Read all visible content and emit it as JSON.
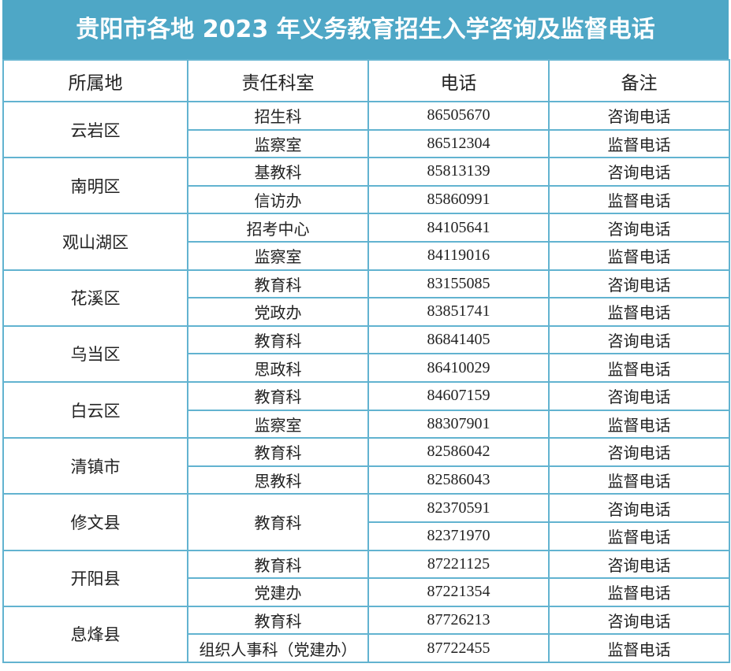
{
  "title": "贵阳市各地 2023 年义务教育招生入学咨询及监督电话",
  "table": {
    "columns": [
      "所属地",
      "责任科室",
      "电话",
      "备注"
    ],
    "groups": [
      {
        "district": "云岩区",
        "rows": [
          {
            "dept": "招生科",
            "phone": "86505670",
            "note": "咨询电话"
          },
          {
            "dept": "监察室",
            "phone": "86512304",
            "note": "监督电话"
          }
        ]
      },
      {
        "district": "南明区",
        "rows": [
          {
            "dept": "基教科",
            "phone": "85813139",
            "note": "咨询电话"
          },
          {
            "dept": "信访办",
            "phone": "85860991",
            "note": "监督电话"
          }
        ]
      },
      {
        "district": "观山湖区",
        "rows": [
          {
            "dept": "招考中心",
            "phone": "84105641",
            "note": "咨询电话"
          },
          {
            "dept": "监察室",
            "phone": "84119016",
            "note": "监督电话"
          }
        ]
      },
      {
        "district": "花溪区",
        "rows": [
          {
            "dept": "教育科",
            "phone": "83155085",
            "note": "咨询电话"
          },
          {
            "dept": "党政办",
            "phone": "83851741",
            "note": "监督电话"
          }
        ]
      },
      {
        "district": "乌当区",
        "rows": [
          {
            "dept": "教育科",
            "phone": "86841405",
            "note": "咨询电话"
          },
          {
            "dept": "思政科",
            "phone": "86410029",
            "note": "监督电话"
          }
        ]
      },
      {
        "district": "白云区",
        "rows": [
          {
            "dept": "教育科",
            "phone": "84607159",
            "note": "咨询电话"
          },
          {
            "dept": "监察室",
            "phone": "88307901",
            "note": "监督电话"
          }
        ]
      },
      {
        "district": "清镇市",
        "rows": [
          {
            "dept": "教育科",
            "phone": "82586042",
            "note": "咨询电话"
          },
          {
            "dept": "思教科",
            "phone": "82586043",
            "note": "监督电话"
          }
        ]
      },
      {
        "district": "修文县",
        "dept": "教育科",
        "rows": [
          {
            "phone": "82370591",
            "note": "咨询电话"
          },
          {
            "phone": "82371970",
            "note": "监督电话"
          }
        ]
      },
      {
        "district": "开阳县",
        "rows": [
          {
            "dept": "教育科",
            "phone": "87221125",
            "note": "咨询电话"
          },
          {
            "dept": "党建办",
            "phone": "87221354",
            "note": "监督电话"
          }
        ]
      },
      {
        "district": "息烽县",
        "rows": [
          {
            "dept": "教育科",
            "phone": "87726213",
            "note": "咨询电话"
          },
          {
            "dept": "组织人事科（党建办）",
            "phone": "87722455",
            "note": "监督电话"
          }
        ]
      }
    ]
  }
}
